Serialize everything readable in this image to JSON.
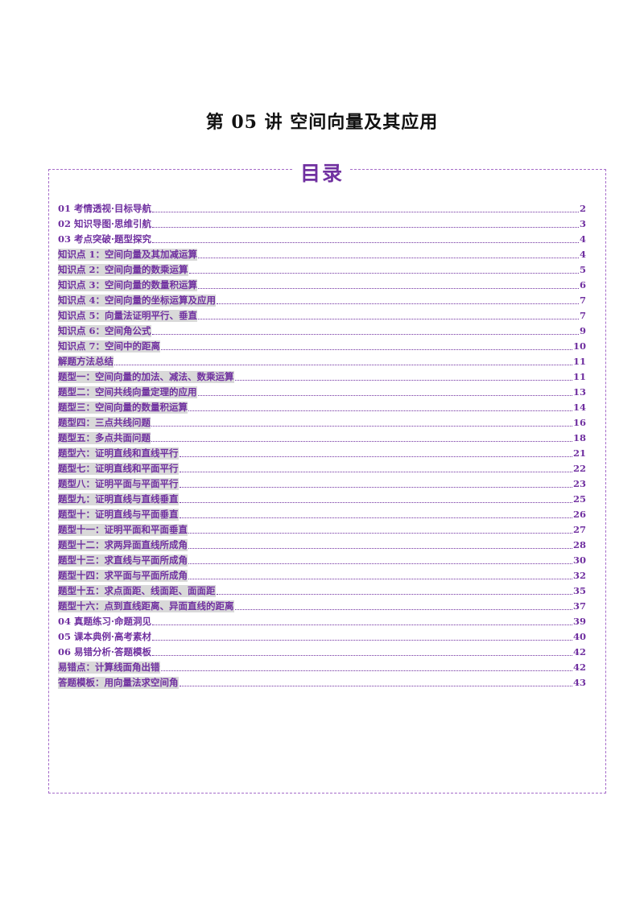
{
  "document": {
    "title": "第 05 讲  空间向量及其应用"
  },
  "toc": {
    "heading": "目录",
    "entries": [
      {
        "label": "01 考情透视·目标导航",
        "page": "2",
        "level": "main"
      },
      {
        "label": "02 知识导图·思维引航",
        "page": "3",
        "level": "main"
      },
      {
        "label": "03 考点突破·题型探究",
        "page": "4",
        "level": "main"
      },
      {
        "label": "知识点 1：空间向量及其加减运算",
        "page": "4",
        "level": "sub"
      },
      {
        "label": "知识点 2：空间向量的数乘运算",
        "page": "5",
        "level": "sub"
      },
      {
        "label": "知识点 3：空间向量的数量积运算",
        "page": "6",
        "level": "sub"
      },
      {
        "label": "知识点 4：空间向量的坐标运算及应用",
        "page": "7",
        "level": "sub"
      },
      {
        "label": "知识点 5：向量法证明平行、垂直",
        "page": "7",
        "level": "sub"
      },
      {
        "label": "知识点 6：空间角公式",
        "page": "9",
        "level": "sub"
      },
      {
        "label": "知识点 7：空间中的距离",
        "page": "10",
        "level": "sub"
      },
      {
        "label": "解题方法总结",
        "page": "11",
        "level": "sub"
      },
      {
        "label": "题型一：空间向量的加法、减法、数乘运算",
        "page": "11",
        "level": "sub"
      },
      {
        "label": "题型二：空间共线向量定理的应用",
        "page": "13",
        "level": "sub"
      },
      {
        "label": "题型三：空间向量的数量积运算",
        "page": "14",
        "level": "sub"
      },
      {
        "label": "题型四：三点共线问题",
        "page": "16",
        "level": "sub"
      },
      {
        "label": "题型五：多点共面问题",
        "page": "18",
        "level": "sub"
      },
      {
        "label": "题型六：证明直线和直线平行",
        "page": "21",
        "level": "sub"
      },
      {
        "label": "题型七：证明直线和平面平行",
        "page": "22",
        "level": "sub"
      },
      {
        "label": "题型八：证明平面与平面平行",
        "page": "23",
        "level": "sub"
      },
      {
        "label": "题型九：证明直线与直线垂直",
        "page": "25",
        "level": "sub"
      },
      {
        "label": "题型十：证明直线与平面垂直",
        "page": "26",
        "level": "sub"
      },
      {
        "label": "题型十一：证明平面和平面垂直",
        "page": "27",
        "level": "sub"
      },
      {
        "label": "题型十二：求两异面直线所成角",
        "page": "28",
        "level": "sub"
      },
      {
        "label": "题型十三：求直线与平面所成角",
        "page": "30",
        "level": "sub"
      },
      {
        "label": "题型十四：求平面与平面所成角",
        "page": "32",
        "level": "sub"
      },
      {
        "label": "题型十五：求点面距、线面距、面面距",
        "page": "35",
        "level": "sub"
      },
      {
        "label": "题型十六：点到直线距离、异面直线的距离",
        "page": "37",
        "level": "sub"
      },
      {
        "label": "04 真题练习·命题洞见",
        "page": "39",
        "level": "main"
      },
      {
        "label": "05 课本典例·高考素材",
        "page": "40",
        "level": "main"
      },
      {
        "label": "06 易错分析·答题模板",
        "page": "42",
        "level": "main"
      },
      {
        "label": "易错点：计算线面角出错",
        "page": "42",
        "level": "sub"
      },
      {
        "label": "答题模板：用向量法求空间角",
        "page": "43",
        "level": "sub"
      }
    ]
  }
}
